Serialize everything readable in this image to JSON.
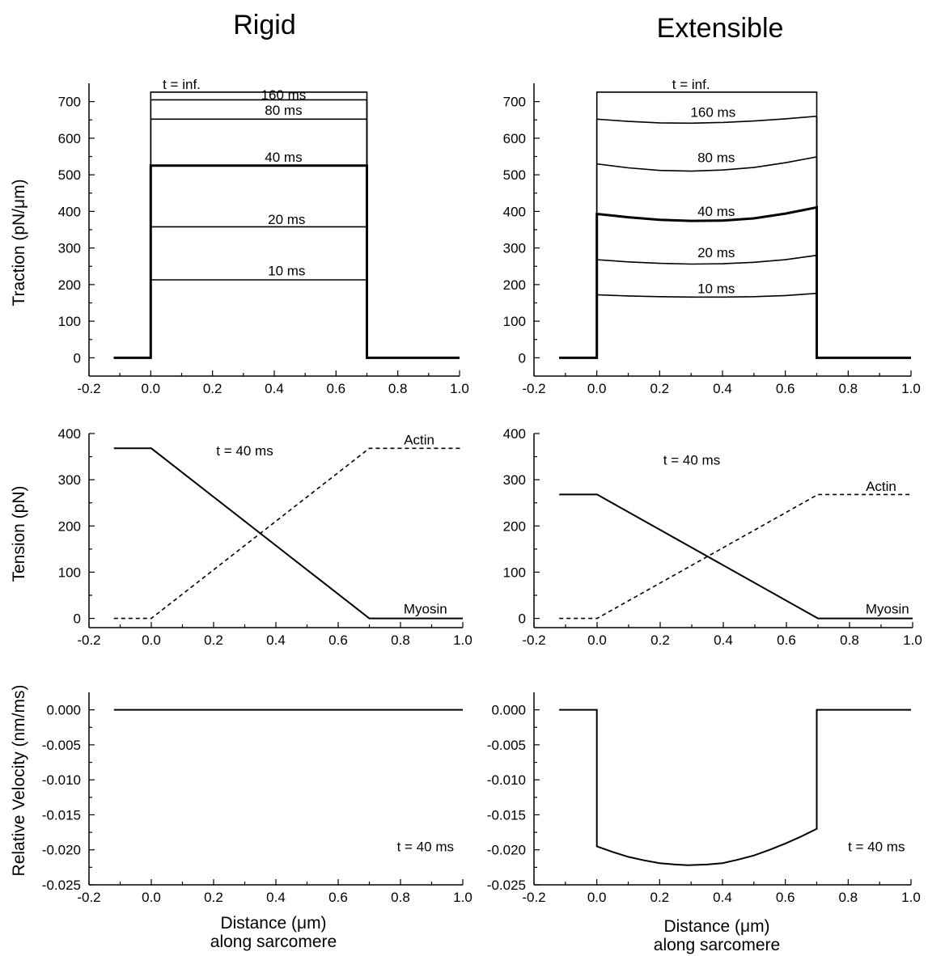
{
  "column_titles": {
    "left": "Rigid",
    "right": "Extensible"
  },
  "row_ylabels": {
    "traction": "Traction  (pN/μm)",
    "tension": "Tension  (pN)",
    "velocity": "Relative Velocity  (nm/ms)"
  },
  "xlabel_line1": {
    "left": "Distance  (μm)",
    "right": "Distance (μm)"
  },
  "xlabel_line2": {
    "left": "along  sarcomere",
    "right": "along  sarcomere"
  },
  "chart_data": [
    {
      "id": "rigid-traction",
      "type": "line",
      "xlim": [
        -0.2,
        1.0
      ],
      "ylim": [
        -50,
        750
      ],
      "xticks": [
        -0.2,
        0.0,
        0.2,
        0.4,
        0.6,
        0.8,
        1.0
      ],
      "yticks": [
        0,
        100,
        200,
        300,
        400,
        500,
        600,
        700
      ],
      "xtick_labels": [
        "-0.2",
        "0.0",
        "0.2",
        "0.4",
        "0.6",
        "0.8",
        "1.0"
      ],
      "ytick_labels": [
        "0",
        "100",
        "200",
        "300",
        "400",
        "500",
        "600",
        "700"
      ],
      "series": [
        {
          "name": "10  ms",
          "style": "solid",
          "width": 1.6,
          "x": [
            -0.12,
            0.0,
            0.0,
            0.7,
            0.7,
            1.0
          ],
          "y": [
            0,
            0,
            213,
            213,
            0,
            0
          ]
        },
        {
          "name": "20  ms",
          "style": "solid",
          "width": 1.6,
          "x": [
            -0.12,
            0.0,
            0.0,
            0.7,
            0.7,
            1.0
          ],
          "y": [
            0,
            0,
            358,
            358,
            0,
            0
          ]
        },
        {
          "name": "40  ms",
          "style": "solid",
          "width": 3.0,
          "x": [
            -0.12,
            0.0,
            0.0,
            0.7,
            0.7,
            1.0
          ],
          "y": [
            0,
            0,
            525,
            525,
            0,
            0
          ]
        },
        {
          "name": "80  ms",
          "style": "solid",
          "width": 1.6,
          "x": [
            -0.12,
            0.0,
            0.0,
            0.7,
            0.7,
            1.0
          ],
          "y": [
            0,
            0,
            652,
            652,
            0,
            0
          ]
        },
        {
          "name": "160  ms",
          "style": "solid",
          "width": 1.6,
          "x": [
            -0.12,
            0.0,
            0.0,
            0.7,
            0.7,
            1.0
          ],
          "y": [
            0,
            0,
            705,
            705,
            0,
            0
          ]
        },
        {
          "name": "t = inf.",
          "style": "solid",
          "width": 1.6,
          "x": [
            -0.12,
            0.0,
            0.0,
            0.7,
            0.7,
            1.0
          ],
          "y": [
            0,
            0,
            726,
            726,
            0,
            0
          ]
        }
      ],
      "annotations": [
        {
          "text": "t = inf.",
          "x": 0.1,
          "y": 735
        },
        {
          "text": "160  ms",
          "x": 0.43,
          "y": 706
        },
        {
          "text": "80  ms",
          "x": 0.43,
          "y": 664
        },
        {
          "text": "40  ms",
          "x": 0.43,
          "y": 536
        },
        {
          "text": "20  ms",
          "x": 0.44,
          "y": 365
        },
        {
          "text": "10  ms",
          "x": 0.44,
          "y": 225
        }
      ]
    },
    {
      "id": "extensible-traction",
      "type": "line",
      "xlim": [
        -0.2,
        1.0
      ],
      "ylim": [
        -50,
        750
      ],
      "xticks": [
        -0.2,
        0.0,
        0.2,
        0.4,
        0.6,
        0.8,
        1.0
      ],
      "yticks": [
        0,
        100,
        200,
        300,
        400,
        500,
        600,
        700
      ],
      "xtick_labels": [
        "-0.2",
        "0.0",
        "0.2",
        "0.4",
        "0.6",
        "0.8",
        "1.0"
      ],
      "ytick_labels": [
        "0",
        "100",
        "200",
        "300",
        "400",
        "500",
        "600",
        "700"
      ],
      "series": [
        {
          "name": "10  ms",
          "style": "solid",
          "width": 1.6,
          "x": [
            -0.12,
            0.0,
            0.0,
            0.1,
            0.2,
            0.3,
            0.4,
            0.5,
            0.6,
            0.7,
            0.7,
            1.0
          ],
          "y": [
            0,
            0,
            172,
            169,
            167,
            166,
            166,
            167,
            170,
            176,
            0,
            0
          ]
        },
        {
          "name": "20  ms",
          "style": "solid",
          "width": 1.6,
          "x": [
            -0.12,
            0.0,
            0.0,
            0.1,
            0.2,
            0.3,
            0.4,
            0.5,
            0.6,
            0.7,
            0.7,
            1.0
          ],
          "y": [
            0,
            0,
            268,
            262,
            258,
            256,
            257,
            261,
            268,
            280,
            0,
            0
          ]
        },
        {
          "name": "40  ms",
          "style": "solid",
          "width": 3.0,
          "x": [
            -0.12,
            0.0,
            0.0,
            0.1,
            0.2,
            0.3,
            0.4,
            0.5,
            0.6,
            0.7,
            0.7,
            1.0
          ],
          "y": [
            0,
            0,
            393,
            384,
            377,
            374,
            375,
            381,
            394,
            411,
            0,
            0
          ]
        },
        {
          "name": "80  ms",
          "style": "solid",
          "width": 1.6,
          "x": [
            -0.12,
            0.0,
            0.0,
            0.1,
            0.2,
            0.3,
            0.4,
            0.5,
            0.6,
            0.7,
            0.7,
            1.0
          ],
          "y": [
            0,
            0,
            530,
            519,
            512,
            510,
            513,
            520,
            533,
            549,
            0,
            0
          ]
        },
        {
          "name": "160  ms",
          "style": "solid",
          "width": 1.6,
          "x": [
            -0.12,
            0.0,
            0.0,
            0.1,
            0.2,
            0.3,
            0.4,
            0.5,
            0.6,
            0.7,
            0.7,
            1.0
          ],
          "y": [
            0,
            0,
            652,
            646,
            642,
            641,
            643,
            647,
            653,
            660,
            0,
            0
          ]
        },
        {
          "name": "t = inf.",
          "style": "solid",
          "width": 1.6,
          "x": [
            -0.12,
            0.0,
            0.0,
            0.7,
            0.7,
            1.0
          ],
          "y": [
            0,
            0,
            726,
            726,
            0,
            0
          ]
        }
      ],
      "annotations": [
        {
          "text": "t = inf.",
          "x": 0.3,
          "y": 735
        },
        {
          "text": "160  ms",
          "x": 0.37,
          "y": 658
        },
        {
          "text": "80  ms",
          "x": 0.38,
          "y": 535
        },
        {
          "text": "40  ms",
          "x": 0.38,
          "y": 388
        },
        {
          "text": "20  ms",
          "x": 0.38,
          "y": 275
        },
        {
          "text": "10  ms",
          "x": 0.38,
          "y": 176
        }
      ]
    },
    {
      "id": "rigid-tension",
      "type": "line",
      "xlim": [
        -0.2,
        1.0
      ],
      "ylim": [
        -20,
        400
      ],
      "xticks": [
        -0.2,
        0.0,
        0.2,
        0.4,
        0.6,
        0.8,
        1.0
      ],
      "yticks": [
        0,
        100,
        200,
        300,
        400
      ],
      "xtick_labels": [
        "-0.2",
        "0.0",
        "0.2",
        "0.4",
        "0.6",
        "0.8",
        "1.0"
      ],
      "ytick_labels": [
        "0",
        "100",
        "200",
        "300",
        "400"
      ],
      "series": [
        {
          "name": "Myosin",
          "style": "solid",
          "width": 2.0,
          "x": [
            -0.12,
            0.0,
            0.7,
            1.0
          ],
          "y": [
            368,
            368,
            0,
            0
          ]
        },
        {
          "name": "Actin",
          "style": "dashed",
          "width": 1.6,
          "x": [
            -0.12,
            0.0,
            0.7,
            1.0
          ],
          "y": [
            0,
            0,
            368,
            368
          ]
        }
      ],
      "annotations": [
        {
          "text": "t = 40 ms",
          "x": 0.3,
          "y": 353
        },
        {
          "text": "Actin",
          "x": 0.86,
          "y": 376
        },
        {
          "text": "Myosin",
          "x": 0.88,
          "y": 11
        }
      ]
    },
    {
      "id": "extensible-tension",
      "type": "line",
      "xlim": [
        -0.2,
        1.0
      ],
      "ylim": [
        -20,
        400
      ],
      "xticks": [
        -0.2,
        0.0,
        0.2,
        0.4,
        0.6,
        0.8,
        1.0
      ],
      "yticks": [
        0,
        100,
        200,
        300,
        400
      ],
      "xtick_labels": [
        "-0.2",
        "0.0",
        "0.2",
        "0.4",
        "0.6",
        "0.8",
        "1.0"
      ],
      "ytick_labels": [
        "0",
        "100",
        "200",
        "300",
        "400"
      ],
      "series": [
        {
          "name": "Myosin",
          "style": "solid",
          "width": 2.0,
          "x": [
            -0.12,
            0.0,
            0.7,
            1.0
          ],
          "y": [
            268,
            268,
            0,
            0
          ]
        },
        {
          "name": "Actin",
          "style": "dashed",
          "width": 1.6,
          "x": [
            -0.12,
            0.0,
            0.7,
            1.0
          ],
          "y": [
            0,
            0,
            268,
            268
          ]
        }
      ],
      "annotations": [
        {
          "text": "t = 40 ms",
          "x": 0.3,
          "y": 333
        },
        {
          "text": "Actin",
          "x": 0.9,
          "y": 276
        },
        {
          "text": "Myosin",
          "x": 0.92,
          "y": 11
        }
      ]
    },
    {
      "id": "rigid-velocity",
      "type": "line",
      "xlim": [
        -0.2,
        1.0
      ],
      "ylim": [
        -0.025,
        0.0025
      ],
      "xticks": [
        -0.2,
        0.0,
        0.2,
        0.4,
        0.6,
        0.8,
        1.0
      ],
      "yticks": [
        0.0,
        -0.005,
        -0.01,
        -0.015,
        -0.02,
        -0.025
      ],
      "xtick_labels": [
        "-0.2",
        "0.0",
        "0.2",
        "0.4",
        "0.6",
        "0.8",
        "1.0"
      ],
      "ytick_labels": [
        "0.000",
        "-0.005",
        "-0.010",
        "-0.015",
        "-0.020",
        "-0.025"
      ],
      "series": [
        {
          "name": "",
          "style": "solid",
          "width": 2.0,
          "x": [
            -0.12,
            1.0
          ],
          "y": [
            0.0,
            0.0
          ]
        }
      ],
      "annotations": [
        {
          "text": "t = 40 ms",
          "x": 0.88,
          "y": -0.0202
        }
      ]
    },
    {
      "id": "extensible-velocity",
      "type": "line",
      "xlim": [
        -0.2,
        1.0
      ],
      "ylim": [
        -0.025,
        0.0025
      ],
      "xticks": [
        -0.2,
        0.0,
        0.2,
        0.4,
        0.6,
        0.8,
        1.0
      ],
      "yticks": [
        0.0,
        -0.005,
        -0.01,
        -0.015,
        -0.02,
        -0.025
      ],
      "xtick_labels": [
        "-0.2",
        "0.0",
        "0.2",
        "0.4",
        "0.6",
        "0.8",
        "1.0"
      ],
      "ytick_labels": [
        "0.000",
        "-0.005",
        "-0.010",
        "-0.015",
        "-0.020",
        "-0.025"
      ],
      "series": [
        {
          "name": "",
          "style": "solid",
          "width": 2.0,
          "x": [
            -0.12,
            0.0,
            0.0,
            0.05,
            0.1,
            0.15,
            0.2,
            0.25,
            0.29,
            0.35,
            0.4,
            0.45,
            0.5,
            0.55,
            0.6,
            0.65,
            0.7,
            0.7,
            1.0
          ],
          "y": [
            0.0,
            0.0,
            -0.0195,
            -0.0203,
            -0.021,
            -0.0215,
            -0.0219,
            -0.0221,
            -0.0222,
            -0.0221,
            -0.0219,
            -0.0214,
            -0.0208,
            -0.02,
            -0.0191,
            -0.0181,
            -0.017,
            0.0,
            0.0
          ]
        }
      ],
      "annotations": [
        {
          "text": "t = 40 ms",
          "x": 0.89,
          "y": -0.0202
        }
      ]
    }
  ]
}
